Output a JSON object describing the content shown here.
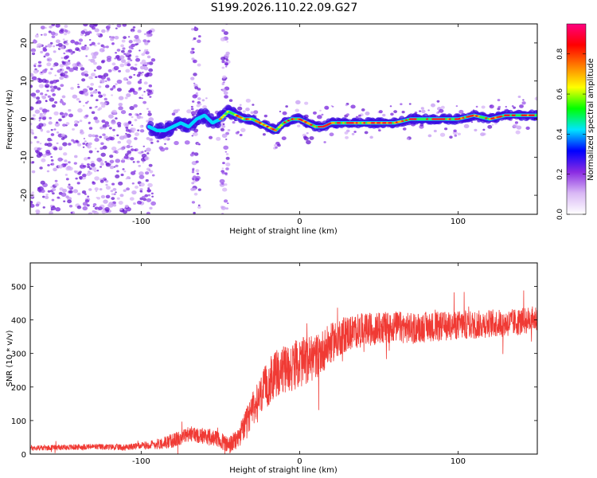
{
  "title": "S199.2026.110.22.09.G27",
  "chart_data": [
    {
      "type": "heatmap",
      "name": "spectrogram",
      "xlabel": "Height of straight line (km)",
      "ylabel": "Frequency (Hz)",
      "xlim": [
        -170,
        150
      ],
      "ylim": [
        -25,
        25
      ],
      "xticks": [
        -100,
        0,
        100
      ],
      "xtick_labels": [
        "-100",
        "0",
        "100"
      ],
      "yticks": [
        -20,
        -10,
        0,
        10,
        20
      ],
      "ytick_labels": [
        "-20",
        "-10",
        "0",
        "10",
        "20"
      ],
      "ridge": {
        "x": [
          -95,
          -90,
          -85,
          -80,
          -75,
          -70,
          -65,
          -60,
          -55,
          -50,
          -45,
          -40,
          -35,
          -30,
          -25,
          -20,
          -15,
          -10,
          -5,
          0,
          5,
          10,
          15,
          20,
          30,
          40,
          50,
          60,
          70,
          80,
          90,
          100,
          110,
          120,
          130,
          140,
          150
        ],
        "y": [
          -2,
          -3,
          -3,
          -2,
          -1,
          -2,
          0,
          1,
          -1,
          0,
          2,
          1,
          0,
          0,
          -1,
          -2,
          -3,
          -1,
          0,
          0,
          -1,
          -2,
          -2,
          -1,
          -1,
          -1,
          -1,
          -1,
          0,
          0,
          0,
          0,
          1,
          0,
          1,
          1,
          1
        ]
      },
      "colorbar": {
        "label": "Normalized spectral amplitude",
        "range": [
          0,
          0.95
        ],
        "ticks": [
          0.0,
          0.2,
          0.4,
          0.6,
          0.8
        ],
        "tick_labels": [
          "0.0",
          "0.2",
          "0.4",
          "0.6",
          "0.8"
        ],
        "colors": [
          "#ffffff",
          "#d9b8f5",
          "#8a2be2",
          "#0000ff",
          "#00e5ff",
          "#00ff00",
          "#ffff00",
          "#ff8000",
          "#ff0000",
          "#ff0080"
        ]
      }
    },
    {
      "type": "line",
      "name": "snr",
      "xlabel": "Height of straight line (km)",
      "ylabel": "SNR (10 * v/v)",
      "xlim": [
        -170,
        150
      ],
      "ylim": [
        0,
        570
      ],
      "xticks": [
        -100,
        0,
        100
      ],
      "xtick_labels": [
        "-100",
        "0",
        "100"
      ],
      "yticks": [
        0,
        100,
        200,
        300,
        400,
        500
      ],
      "ytick_labels": [
        "0",
        "100",
        "200",
        "300",
        "400",
        "500"
      ],
      "color": "#f03a34",
      "trend": {
        "x": [
          -170,
          -150,
          -130,
          -110,
          -100,
          -90,
          -80,
          -70,
          -60,
          -50,
          -45,
          -40,
          -35,
          -30,
          -25,
          -20,
          -15,
          -10,
          -5,
          0,
          5,
          10,
          15,
          20,
          25,
          30,
          40,
          50,
          60,
          70,
          80,
          90,
          100,
          110,
          120,
          130,
          140,
          150
        ],
        "y": [
          18,
          20,
          22,
          20,
          25,
          30,
          40,
          60,
          55,
          40,
          25,
          40,
          80,
          130,
          170,
          210,
          240,
          250,
          260,
          270,
          280,
          290,
          310,
          330,
          350,
          360,
          370,
          375,
          380,
          375,
          380,
          380,
          385,
          385,
          390,
          390,
          395,
          405
        ]
      },
      "noise": {
        "x": [
          -170,
          -100,
          -80,
          -60,
          -40,
          -20,
          0,
          20,
          40,
          80,
          150
        ],
        "amp": [
          8,
          10,
          22,
          25,
          30,
          70,
          75,
          60,
          50,
          45,
          40
        ]
      }
    }
  ]
}
